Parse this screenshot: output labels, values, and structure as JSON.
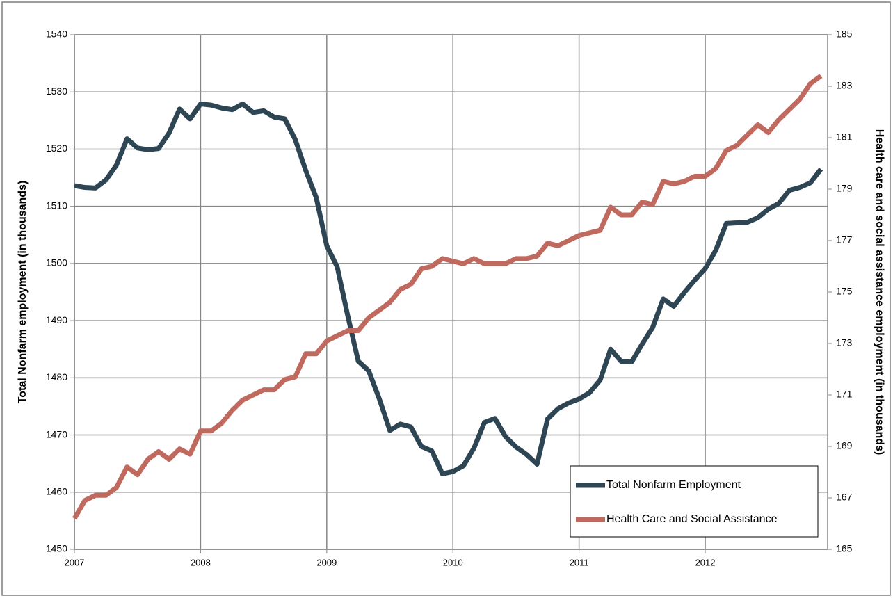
{
  "chart_data": {
    "type": "line",
    "y_label": "Total Nonfarm employment (in thousands)",
    "y2_label": "Health care and social assistance employment (in thousands)",
    "x": [
      2007,
      2007.083,
      2007.167,
      2007.25,
      2007.333,
      2007.417,
      2007.5,
      2007.583,
      2007.667,
      2007.75,
      2007.833,
      2007.917,
      2008,
      2008.083,
      2008.167,
      2008.25,
      2008.333,
      2008.417,
      2008.5,
      2008.583,
      2008.667,
      2008.75,
      2008.833,
      2008.917,
      2009,
      2009.083,
      2009.167,
      2009.25,
      2009.333,
      2009.417,
      2009.5,
      2009.583,
      2009.667,
      2009.75,
      2009.833,
      2009.917,
      2010,
      2010.083,
      2010.167,
      2010.25,
      2010.333,
      2010.417,
      2010.5,
      2010.583,
      2010.667,
      2010.75,
      2010.833,
      2010.917,
      2011,
      2011.083,
      2011.167,
      2011.25,
      2011.333,
      2011.417,
      2011.5,
      2011.583,
      2011.667,
      2011.75,
      2011.833,
      2011.917,
      2012,
      2012.083,
      2012.167,
      2012.25,
      2012.333,
      2012.417,
      2012.5,
      2012.583,
      2012.667,
      2012.75,
      2012.833,
      2012.917
    ],
    "series": [
      {
        "name": "Total Nonfarm Employment",
        "color": "#2e4553",
        "axis": "y",
        "values": [
          1513.6,
          1513.3,
          1513.2,
          1514.6,
          1517.2,
          1521.8,
          1520.2,
          1519.9,
          1520.1,
          1522.8,
          1527.0,
          1525.3,
          1527.9,
          1527.7,
          1527.2,
          1526.9,
          1527.9,
          1526.4,
          1526.7,
          1525.6,
          1525.3,
          1521.7,
          1516.3,
          1511.5,
          1503.1,
          1499.4,
          1490.8,
          1482.9,
          1481.2,
          1476.3,
          1470.8,
          1471.9,
          1471.4,
          1468.0,
          1467.2,
          1463.2,
          1463.6,
          1464.6,
          1467.7,
          1472.2,
          1472.9,
          1469.7,
          1467.9,
          1466.6,
          1464.9,
          1472.8,
          1474.6,
          1475.6,
          1476.3,
          1477.4,
          1479.6,
          1485.0,
          1482.9,
          1482.8,
          1485.9,
          1488.8,
          1493.8,
          1492.5,
          1494.9,
          1497.1,
          1499.1,
          1502.3,
          1507.0,
          1507.1,
          1507.2,
          1508.0,
          1509.5,
          1510.5,
          1512.8,
          1513.3,
          1514.1,
          1516.5
        ]
      },
      {
        "name": "Health Care and Social Assistance",
        "color": "#c0695f",
        "axis": "y2",
        "values": [
          166.2,
          166.9,
          167.1,
          167.1,
          167.4,
          168.2,
          167.9,
          168.5,
          168.8,
          168.5,
          168.9,
          168.7,
          169.6,
          169.6,
          169.9,
          170.4,
          170.8,
          171.0,
          171.2,
          171.2,
          171.6,
          171.7,
          172.6,
          172.6,
          173.1,
          173.3,
          173.5,
          173.5,
          174.0,
          174.3,
          174.6,
          175.1,
          175.3,
          175.9,
          176.0,
          176.3,
          176.2,
          176.1,
          176.3,
          176.1,
          176.1,
          176.1,
          176.3,
          176.3,
          176.4,
          176.9,
          176.8,
          177.0,
          177.2,
          177.3,
          177.4,
          178.3,
          178.0,
          178.0,
          178.5,
          178.4,
          179.3,
          179.2,
          179.3,
          179.5,
          179.5,
          179.8,
          180.5,
          180.7,
          181.1,
          181.5,
          181.2,
          181.7,
          182.1,
          182.5,
          183.1,
          183.4
        ]
      }
    ],
    "xlim": [
      2007,
      2012.97
    ],
    "xticks": [
      2007,
      2008,
      2009,
      2010,
      2011,
      2012
    ],
    "ylim": [
      1450,
      1540
    ],
    "yticks": [
      1450,
      1460,
      1470,
      1480,
      1490,
      1500,
      1510,
      1520,
      1530,
      1540
    ],
    "y2lim": [
      165,
      185
    ],
    "y2ticks": [
      165,
      167,
      169,
      171,
      173,
      175,
      177,
      179,
      181,
      183,
      185
    ],
    "grid": true,
    "legend": "lower right"
  }
}
